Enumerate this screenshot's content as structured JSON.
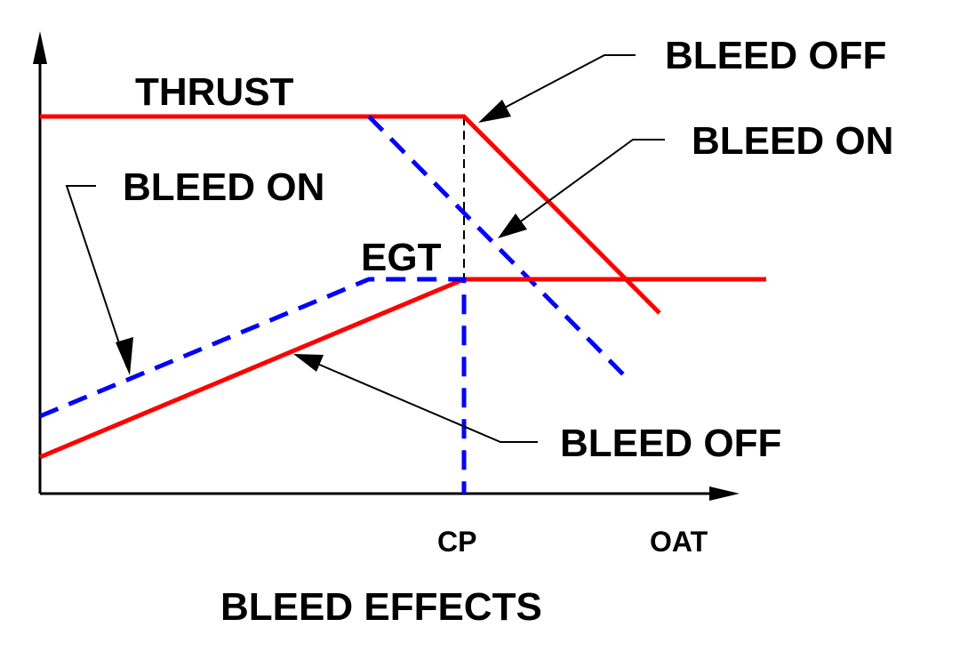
{
  "diagram": {
    "title": "BLEED EFFECTS",
    "x_axis_label": "OAT",
    "cp_label": "CP",
    "labels": {
      "thrust": "THRUST",
      "egt": "EGT",
      "bleed_off_top": "BLEED OFF",
      "bleed_on_top": "BLEED ON",
      "bleed_on_left": "BLEED ON",
      "bleed_off_bottom": "BLEED OFF"
    },
    "colors": {
      "bleed_off": "#ff0000",
      "bleed_on": "#0000ff",
      "axis": "#000000"
    },
    "line_styles": {
      "bleed_off": "solid",
      "bleed_on": "dashed"
    }
  }
}
